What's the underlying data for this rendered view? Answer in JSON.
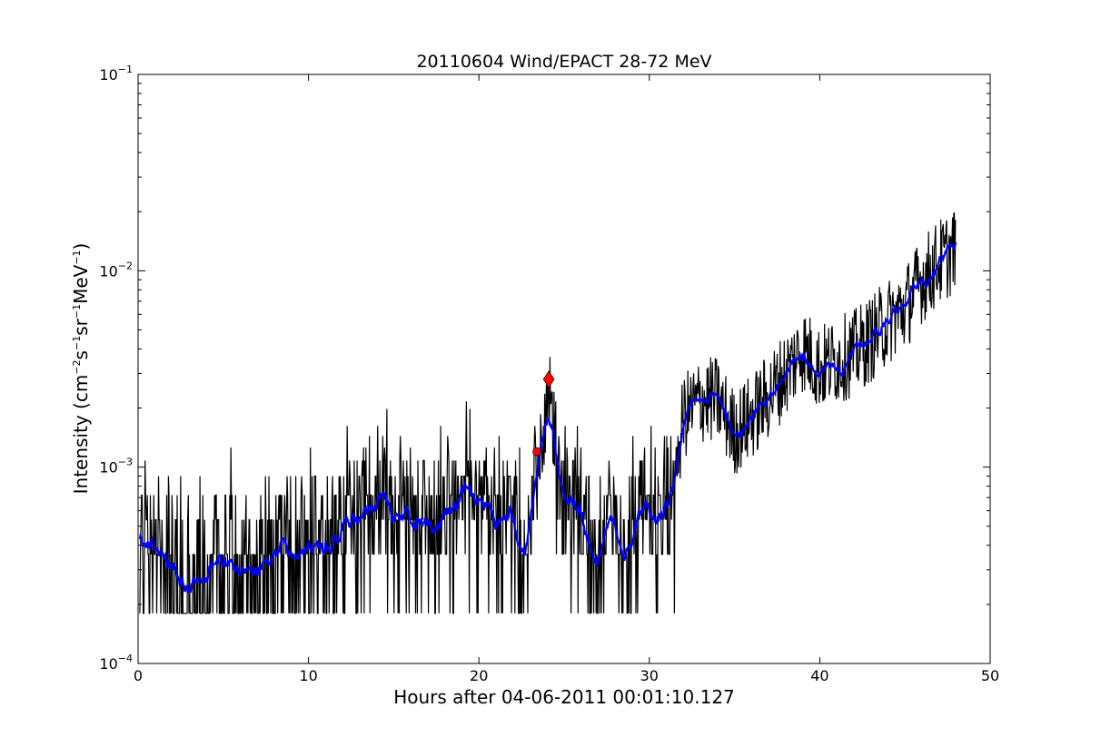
{
  "chart_data": {
    "type": "line",
    "title": "20110604 Wind/EPACT 28-72 MeV",
    "xlabel": "Hours after 04-06-2011 00:01:10.127",
    "ylabel": {
      "prefix": "Intensity (cm",
      "sup1": "−2",
      "mid1": "s",
      "sup2": "−1",
      "mid2": "sr",
      "sup3": "−1",
      "mid3": "MeV",
      "sup4": "−1",
      "suffix": ")"
    },
    "xlim": [
      0,
      50
    ],
    "ylim": [
      0.0001,
      0.1
    ],
    "yscale": "log",
    "grid": false,
    "x_ticks": [
      {
        "value": 0,
        "label": "0"
      },
      {
        "value": 10,
        "label": "10"
      },
      {
        "value": 20,
        "label": "20"
      },
      {
        "value": 30,
        "label": "30"
      },
      {
        "value": 40,
        "label": "40"
      },
      {
        "value": 50,
        "label": "50"
      }
    ],
    "y_ticks": [
      {
        "value": 0.0001,
        "base": "10",
        "exp": "−4"
      },
      {
        "value": 0.001,
        "base": "10",
        "exp": "−3"
      },
      {
        "value": 0.01,
        "base": "10",
        "exp": "−2"
      },
      {
        "value": 0.1,
        "base": "10",
        "exp": "−1"
      }
    ],
    "raw_trend": [
      [
        0,
        0.00035
      ],
      [
        1,
        0.00045
      ],
      [
        2,
        0.00035
      ],
      [
        3,
        0.00026
      ],
      [
        4,
        0.0003
      ],
      [
        5,
        0.0004
      ],
      [
        6,
        0.0004
      ],
      [
        7,
        0.00036
      ],
      [
        8,
        0.00036
      ],
      [
        9,
        0.00042
      ],
      [
        10,
        0.00044
      ],
      [
        11,
        0.00044
      ],
      [
        12,
        0.00055
      ],
      [
        12.5,
        0.0007
      ],
      [
        13,
        0.00072
      ],
      [
        14,
        0.00068
      ],
      [
        15,
        0.00075
      ],
      [
        16,
        0.00065
      ],
      [
        17,
        0.00065
      ],
      [
        18,
        0.0007
      ],
      [
        19,
        0.00072
      ],
      [
        20,
        0.0007
      ],
      [
        21,
        0.0006
      ],
      [
        22,
        0.0005
      ],
      [
        23,
        0.00045
      ],
      [
        23.4,
        0.0011
      ],
      [
        23.8,
        0.0015
      ],
      [
        24.1,
        0.0028
      ],
      [
        24.5,
        0.0012
      ],
      [
        25,
        0.0008
      ],
      [
        26,
        0.0007
      ],
      [
        27,
        0.00045
      ],
      [
        28,
        0.0004
      ],
      [
        29,
        0.00045
      ],
      [
        30,
        0.00065
      ],
      [
        31,
        0.0007
      ],
      [
        31.5,
        0.0009
      ],
      [
        32,
        0.0018
      ],
      [
        33,
        0.0022
      ],
      [
        34,
        0.0022
      ],
      [
        35,
        0.0015
      ],
      [
        36,
        0.0018
      ],
      [
        37,
        0.0023
      ],
      [
        38,
        0.003
      ],
      [
        39,
        0.004
      ],
      [
        40,
        0.0032
      ],
      [
        41,
        0.0035
      ],
      [
        42,
        0.0038
      ],
      [
        43,
        0.0045
      ],
      [
        44,
        0.0055
      ],
      [
        45,
        0.0065
      ],
      [
        46,
        0.009
      ],
      [
        47,
        0.011
      ],
      [
        48,
        0.013
      ]
    ],
    "raw_floor": 0.00018,
    "series": [
      {
        "color": "#000000",
        "kind": "raw intensity"
      },
      {
        "color": "#0000ff",
        "kind": "smoothed intensity"
      }
    ],
    "markers": [
      {
        "x": 23.4,
        "y": 0.0012,
        "shape": "circle",
        "color": "#ff0000"
      },
      {
        "x": 24.1,
        "y": 0.0028,
        "shape": "diamond",
        "color": "#ff0000"
      }
    ]
  }
}
